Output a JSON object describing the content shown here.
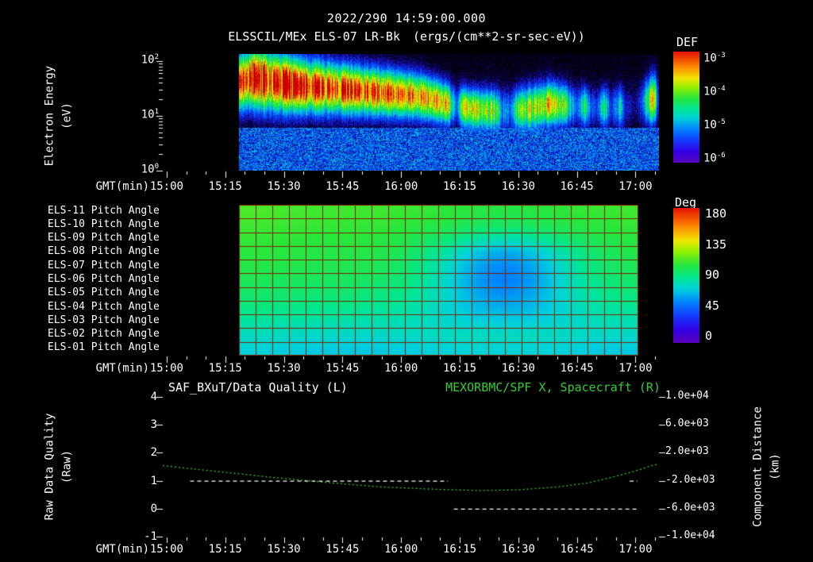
{
  "colors": {
    "background": "#000000",
    "text": "#ffffff",
    "accent_green": "#33cc33",
    "grid_red": "#7a2200",
    "rainbow_stops": [
      [
        0,
        90,
        0,
        190
      ],
      [
        0.1,
        50,
        0,
        230
      ],
      [
        0.2,
        20,
        60,
        255
      ],
      [
        0.3,
        0,
        130,
        255
      ],
      [
        0.4,
        0,
        210,
        220
      ],
      [
        0.48,
        0,
        230,
        150
      ],
      [
        0.58,
        40,
        230,
        60
      ],
      [
        0.68,
        150,
        240,
        0
      ],
      [
        0.76,
        240,
        230,
        0
      ],
      [
        0.86,
        255,
        140,
        0
      ],
      [
        1,
        230,
        20,
        0
      ]
    ],
    "spectro_stops": [
      [
        0,
        0,
        0,
        8
      ],
      [
        0.06,
        10,
        0,
        60
      ],
      [
        0.16,
        20,
        20,
        200
      ],
      [
        0.28,
        0,
        90,
        255
      ],
      [
        0.4,
        0,
        200,
        230
      ],
      [
        0.5,
        0,
        230,
        130
      ],
      [
        0.6,
        40,
        230,
        40
      ],
      [
        0.7,
        160,
        240,
        0
      ],
      [
        0.78,
        240,
        230,
        0
      ],
      [
        0.86,
        255,
        150,
        0
      ],
      [
        0.93,
        255,
        60,
        0
      ],
      [
        1,
        200,
        0,
        0
      ]
    ]
  },
  "header": {
    "timestamp": "2022/290 14:59:00.000",
    "instrument_title": "ELSSCIL/MEx ELS-07 LR-Bk",
    "units_label": "(ergs/(cm**2-sr-sec-eV))"
  },
  "time_axis": {
    "label": "GMT(min)",
    "tick_labels": [
      "15:00",
      "15:15",
      "15:30",
      "15:45",
      "16:00",
      "16:15",
      "16:30",
      "16:45",
      "17:00"
    ],
    "tick_minutes": [
      0,
      15,
      30,
      45,
      60,
      75,
      90,
      105,
      120
    ],
    "range_minutes": [
      -1,
      126
    ]
  },
  "spectrogram_panel": {
    "colorbar_title": "DEF",
    "y_label_line1": "Electron Energy",
    "y_label_line2": "(eV)",
    "y_ticks": [
      {
        "base": "10",
        "exp": "2"
      },
      {
        "base": "10",
        "exp": "1"
      },
      {
        "base": "10",
        "exp": "0"
      }
    ],
    "colorbar_ticks": [
      {
        "base": "10",
        "exp": "-3"
      },
      {
        "base": "10",
        "exp": "-4"
      },
      {
        "base": "10",
        "exp": "-5"
      },
      {
        "base": "10",
        "exp": "-6"
      }
    ]
  },
  "pitch_panel": {
    "colorbar_title": "Deg",
    "row_labels": [
      "ELS-11 Pitch Angle",
      "ELS-10 Pitch Angle",
      "ELS-09 Pitch Angle",
      "ELS-08 Pitch Angle",
      "ELS-07 Pitch Angle",
      "ELS-06 Pitch Angle",
      "ELS-05 Pitch Angle",
      "ELS-04 Pitch Angle",
      "ELS-03 Pitch Angle",
      "ELS-02 Pitch Angle",
      "ELS-01 Pitch Angle"
    ],
    "colorbar_ticks": [
      "180",
      "135",
      "90",
      "45",
      "0"
    ]
  },
  "bottom_panel": {
    "left_title": "SAF_BXuT/Data Quality (L)",
    "right_title": "MEXORBMC/SPF X, Spacecraft (R)",
    "left_label_line1": "Raw Data Quality",
    "left_label_line2": "(Raw)",
    "right_label_line1": "Component Distance",
    "right_label_line2": "(km)",
    "left_ticks": [
      "4",
      "3",
      "2",
      "1",
      "0",
      "-1"
    ],
    "right_ticks": [
      "1.0e+04",
      "6.0e+03",
      "2.0e+03",
      "-2.0e+03",
      "-6.0e+03",
      "-1.0e+04"
    ]
  },
  "chart_data": [
    {
      "type": "heatmap",
      "name": "electron-energy-spectrogram",
      "title": "ELSSCIL/MEx ELS-07 LR-Bk",
      "units": "ergs/(cm**2-sr-sec-eV)",
      "xlabel": "GMT(min), minutes after 15:00",
      "x_range": [
        -1,
        126
      ],
      "ylabel": "Electron Energy (eV)",
      "y_scale": "log",
      "y_range_ev": [
        1,
        135
      ],
      "color_scale": {
        "label": "DEF",
        "min": 1e-06,
        "max": 0.001,
        "scale": "log"
      },
      "data_start_minute": 18.5,
      "band_center_ev_keyframes": [
        [
          18.5,
          40
        ],
        [
          22,
          48
        ],
        [
          28,
          40
        ],
        [
          35,
          34
        ],
        [
          45,
          30
        ],
        [
          55,
          26
        ],
        [
          65,
          22
        ],
        [
          72,
          16
        ],
        [
          78,
          13
        ],
        [
          85,
          12
        ],
        [
          92,
          13
        ],
        [
          98,
          16
        ],
        [
          103,
          15
        ],
        [
          110,
          14
        ],
        [
          118,
          14
        ],
        [
          125,
          20
        ]
      ],
      "band_amplitude_keyframes": [
        [
          18.5,
          0.8
        ],
        [
          20,
          0.95
        ],
        [
          24,
          1
        ],
        [
          30,
          1
        ],
        [
          40,
          0.97
        ],
        [
          50,
          0.92
        ],
        [
          58,
          0.9
        ],
        [
          65,
          0.85
        ],
        [
          70,
          0.8
        ],
        [
          72,
          0.75
        ],
        [
          74,
          0.25
        ],
        [
          76,
          0.7
        ],
        [
          80,
          0.72
        ],
        [
          84,
          0.68
        ],
        [
          86,
          0.35
        ],
        [
          88,
          0.3
        ],
        [
          90,
          0.6
        ],
        [
          94,
          0.7
        ],
        [
          98,
          0.75
        ],
        [
          101,
          0.7
        ],
        [
          103,
          0.45
        ],
        [
          105,
          0.25
        ],
        [
          107,
          0.5
        ],
        [
          108.5,
          0.3
        ],
        [
          110,
          0.2
        ],
        [
          112,
          0.55
        ],
        [
          113.5,
          0.2
        ],
        [
          116,
          0.45
        ],
        [
          117.5,
          0.15
        ],
        [
          120,
          0.12
        ],
        [
          122,
          0.3
        ],
        [
          123.5,
          0.75
        ],
        [
          125,
          0.7
        ],
        [
          125.5,
          0.3
        ],
        [
          126,
          0.1
        ]
      ],
      "band_sigma_decades_keyframes": [
        [
          18.5,
          0.35
        ],
        [
          25,
          0.38
        ],
        [
          35,
          0.33
        ],
        [
          50,
          0.3
        ],
        [
          65,
          0.28
        ],
        [
          75,
          0.25
        ],
        [
          85,
          0.27
        ],
        [
          95,
          0.28
        ],
        [
          110,
          0.25
        ],
        [
          125,
          0.3
        ]
      ]
    },
    {
      "type": "heatmap",
      "name": "pitch-angle-panels",
      "units": "degrees",
      "value_range": [
        0,
        180
      ],
      "color_scale_label": "Deg",
      "x_range_minutes": [
        18.5,
        120.5
      ],
      "n_time_bins": 24,
      "rows": [
        "ELS-11",
        "ELS-10",
        "ELS-09",
        "ELS-08",
        "ELS-07",
        "ELS-06",
        "ELS-05",
        "ELS-04",
        "ELS-03",
        "ELS-02",
        "ELS-01"
      ],
      "values": [
        [
          110,
          110,
          109,
          109,
          108,
          108,
          108,
          108,
          108,
          107,
          107,
          106,
          105,
          104,
          103,
          102,
          102,
          103,
          104,
          105,
          106,
          107,
          107,
          108
        ],
        [
          108,
          108,
          107,
          107,
          107,
          106,
          106,
          106,
          106,
          105,
          104,
          103,
          101,
          99,
          97,
          96,
          96,
          97,
          99,
          101,
          103,
          104,
          105,
          106
        ],
        [
          106,
          106,
          105,
          105,
          104,
          104,
          104,
          104,
          103,
          102,
          100,
          96,
          92,
          87,
          83,
          80,
          80,
          83,
          87,
          92,
          96,
          100,
          102,
          103
        ],
        [
          104,
          104,
          103,
          103,
          102,
          102,
          102,
          102,
          101,
          99,
          95,
          89,
          82,
          74,
          68,
          63,
          63,
          68,
          74,
          82,
          89,
          95,
          99,
          101
        ],
        [
          102,
          102,
          101,
          101,
          100,
          100,
          100,
          100,
          98,
          96,
          92,
          85,
          77,
          68,
          61,
          56,
          56,
          61,
          68,
          77,
          85,
          92,
          96,
          98
        ],
        [
          99,
          99,
          98,
          98,
          97,
          97,
          97,
          96,
          95,
          93,
          89,
          83,
          75,
          67,
          59,
          54,
          54,
          59,
          67,
          75,
          83,
          89,
          93,
          95
        ],
        [
          95,
          95,
          94,
          94,
          93,
          93,
          93,
          92,
          91,
          89,
          86,
          81,
          75,
          68,
          62,
          58,
          58,
          62,
          68,
          75,
          81,
          86,
          89,
          91
        ],
        [
          90,
          90,
          89,
          89,
          88,
          88,
          88,
          87,
          86,
          85,
          83,
          79,
          74,
          70,
          67,
          65,
          65,
          67,
          70,
          74,
          79,
          83,
          85,
          86
        ],
        [
          84,
          84,
          83,
          83,
          82,
          82,
          82,
          81,
          81,
          80,
          79,
          77,
          75,
          73,
          72,
          71,
          71,
          72,
          73,
          75,
          77,
          79,
          80,
          81
        ],
        [
          78,
          78,
          77,
          77,
          76,
          76,
          76,
          76,
          76,
          77,
          77,
          78,
          78,
          78,
          78,
          78,
          78,
          78,
          78,
          77,
          77,
          76,
          76,
          76
        ],
        [
          72,
          72,
          71,
          71,
          70,
          70,
          70,
          70,
          70,
          71,
          71,
          72,
          72,
          73,
          73,
          73,
          73,
          73,
          72,
          72,
          71,
          70,
          70,
          70
        ]
      ]
    },
    {
      "type": "line",
      "name": "data-quality-and-spacecraft-x",
      "xlabel": "GMT(min)",
      "x_range": [
        -1,
        126
      ],
      "left_axis": {
        "label": "Raw Data Quality (Raw)",
        "range": [
          -1,
          4
        ],
        "ticks": [
          4,
          3,
          2,
          1,
          0,
          -1
        ]
      },
      "right_axis": {
        "label": "Component Distance (km)",
        "range": [
          -10000,
          10000
        ],
        "ticks": [
          10000,
          6000,
          2000,
          -2000,
          -6000,
          -10000
        ]
      },
      "series": [
        {
          "name": "SAF_BXuT/Data Quality (L)",
          "axis": "left",
          "color": "#ffffff",
          "style": "dashed",
          "segments": [
            {
              "t_range": [
                6,
                72
              ],
              "value": 1
            },
            {
              "t_range": [
                73.5,
                121
              ],
              "value": 0
            },
            {
              "t_range": [
                118.5,
                120.5
              ],
              "value": 1
            }
          ]
        },
        {
          "name": "MEXORBMC/SPF X, Spacecraft (R)",
          "axis": "right",
          "color": "#33cc33",
          "style": "dashed",
          "points": [
            [
              -1,
              150
            ],
            [
              10,
              -500
            ],
            [
              25,
              -1400
            ],
            [
              40,
              -2200
            ],
            [
              55,
              -2900
            ],
            [
              70,
              -3250
            ],
            [
              80,
              -3400
            ],
            [
              90,
              -3300
            ],
            [
              100,
              -2900
            ],
            [
              108,
              -2300
            ],
            [
              114,
              -1500
            ],
            [
              120,
              -600
            ],
            [
              125,
              300
            ]
          ]
        }
      ]
    }
  ]
}
